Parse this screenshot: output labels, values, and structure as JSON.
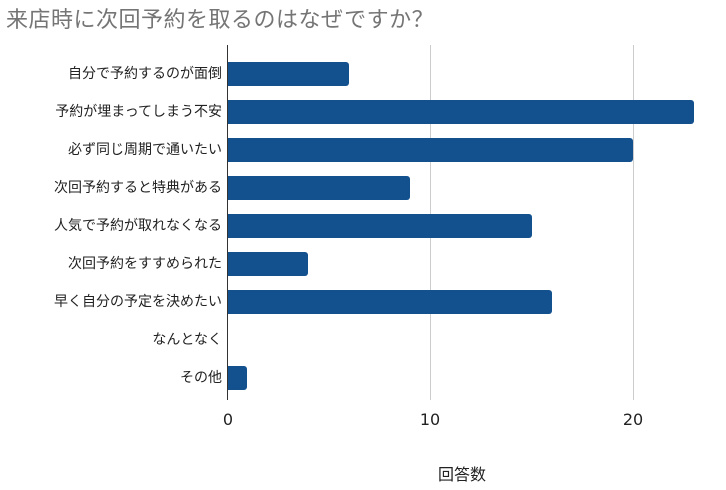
{
  "chart_data": {
    "type": "bar",
    "orientation": "horizontal",
    "title": "来店時に次回予約を取るのはなぜですか？",
    "xlabel": "回答数",
    "ylabel": "",
    "categories": [
      "自分で予約するのが面倒",
      "予約が埋まってしまう不安",
      "必ず同じ周期で通いたい",
      "次回予約すると特典がある",
      "人気で予約が取れなくなる",
      "次回予約をすすめられた",
      "早く自分の予定を決めたい",
      "なんとなく",
      "その他"
    ],
    "values": [
      6,
      23,
      20,
      9,
      15,
      4,
      16,
      0,
      1
    ],
    "xlim": [
      0,
      24
    ],
    "x_ticks": [
      "0",
      "10",
      "20"
    ],
    "grid": "vertical",
    "legend": "none",
    "bar_color": "#13518e"
  }
}
